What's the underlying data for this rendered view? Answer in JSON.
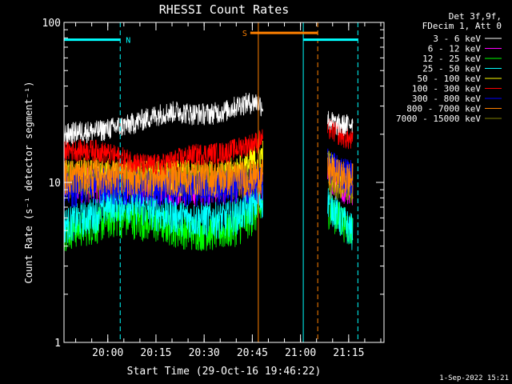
{
  "chart_data": {
    "type": "line",
    "title": "RHESSI Count Rates",
    "xlabel": "Start Time (29-Oct-16 19:46:22)",
    "ylabel": "Count Rate (s⁻¹ detector segment⁻¹)",
    "yscale": "log",
    "ylim": [
      1,
      100
    ],
    "xlim": [
      "19:46:22",
      "21:26:00"
    ],
    "y_tick_labels": [
      "1",
      "10",
      "100"
    ],
    "x_tick_labels": [
      "20:00",
      "20:15",
      "20:30",
      "20:45",
      "21:00",
      "21:15"
    ],
    "legend_header": [
      "Det 3f,9f,",
      "FDecim 1, Att 0"
    ],
    "series": [
      {
        "name": "3 - 6 keV",
        "color": "#ffffff",
        "values": [
          [
            0,
            20
          ],
          [
            5,
            21
          ],
          [
            10,
            21
          ],
          [
            15,
            22
          ],
          [
            20,
            23
          ],
          [
            25,
            25
          ],
          [
            30,
            27
          ],
          [
            35,
            28
          ],
          [
            40,
            27
          ],
          [
            45,
            27
          ],
          [
            50,
            28
          ],
          [
            55,
            31
          ],
          [
            60,
            32
          ],
          [
            62,
            30
          ],
          [
            82,
            25
          ],
          [
            85,
            23
          ],
          [
            88,
            23
          ],
          [
            90,
            24
          ]
        ]
      },
      {
        "name": "6 - 12 keV",
        "color": "#ff00ff",
        "values": [
          [
            0,
            10
          ],
          [
            10,
            10
          ],
          [
            20,
            9.5
          ],
          [
            30,
            9.5
          ],
          [
            40,
            9.5
          ],
          [
            50,
            9.7
          ],
          [
            60,
            10
          ],
          [
            62,
            10
          ],
          [
            82,
            11
          ],
          [
            86,
            10
          ],
          [
            90,
            9.5
          ]
        ]
      },
      {
        "name": "12 - 25 keV",
        "color": "#00ff00",
        "values": [
          [
            0,
            5
          ],
          [
            10,
            5.5
          ],
          [
            15,
            6
          ],
          [
            20,
            6
          ],
          [
            30,
            5.5
          ],
          [
            40,
            5
          ],
          [
            50,
            5
          ],
          [
            55,
            5.5
          ],
          [
            60,
            6.5
          ],
          [
            62,
            7
          ],
          [
            82,
            7
          ],
          [
            86,
            6
          ],
          [
            90,
            5
          ]
        ]
      },
      {
        "name": "25 - 50 keV",
        "color": "#00ffff",
        "values": [
          [
            0,
            5.5
          ],
          [
            10,
            6.5
          ],
          [
            15,
            7.5
          ],
          [
            20,
            7.5
          ],
          [
            30,
            6.5
          ],
          [
            40,
            6
          ],
          [
            50,
            6
          ],
          [
            55,
            6.5
          ],
          [
            60,
            7.5
          ],
          [
            62,
            8
          ],
          [
            82,
            8
          ],
          [
            86,
            6
          ],
          [
            90,
            5
          ]
        ]
      },
      {
        "name": "50 - 100 keV",
        "color": "#ffff00",
        "values": [
          [
            0,
            11
          ],
          [
            10,
            11
          ],
          [
            20,
            11
          ],
          [
            30,
            11
          ],
          [
            40,
            11
          ],
          [
            50,
            11
          ],
          [
            55,
            12
          ],
          [
            60,
            14
          ],
          [
            62,
            15
          ],
          [
            82,
            13
          ],
          [
            86,
            11
          ],
          [
            90,
            10
          ]
        ]
      },
      {
        "name": "100 - 300 keV",
        "color": "#ff0000",
        "values": [
          [
            0,
            16
          ],
          [
            10,
            16
          ],
          [
            20,
            14
          ],
          [
            25,
            13
          ],
          [
            30,
            13
          ],
          [
            35,
            14
          ],
          [
            40,
            15
          ],
          [
            50,
            15.5
          ],
          [
            60,
            18
          ],
          [
            62,
            19
          ],
          [
            82,
            22
          ],
          [
            86,
            20
          ],
          [
            90,
            18
          ]
        ]
      },
      {
        "name": "300 - 800 keV",
        "color": "#0000ff",
        "values": [
          [
            0,
            9
          ],
          [
            10,
            10
          ],
          [
            20,
            9.5
          ],
          [
            30,
            9.5
          ],
          [
            40,
            9.5
          ],
          [
            50,
            9.5
          ],
          [
            60,
            10
          ],
          [
            62,
            10
          ],
          [
            82,
            13
          ],
          [
            86,
            12
          ],
          [
            90,
            11
          ]
        ]
      },
      {
        "name": "800 - 7000 keV",
        "color": "#ff8000",
        "values": [
          [
            0,
            11
          ],
          [
            10,
            11.5
          ],
          [
            20,
            11
          ],
          [
            30,
            11
          ],
          [
            40,
            11
          ],
          [
            50,
            11
          ],
          [
            60,
            11
          ],
          [
            62,
            11
          ],
          [
            82,
            12
          ],
          [
            86,
            11
          ],
          [
            90,
            10.5
          ]
        ]
      },
      {
        "name": "7000 - 15000 keV",
        "color": "#808000",
        "values": [
          [
            0,
            10.5
          ],
          [
            10,
            10.5
          ],
          [
            20,
            10.5
          ],
          [
            30,
            10.5
          ],
          [
            40,
            10.5
          ],
          [
            50,
            10.5
          ],
          [
            60,
            10.5
          ],
          [
            62,
            10.5
          ],
          [
            82,
            10.5
          ],
          [
            86,
            10
          ],
          [
            90,
            10
          ]
        ]
      }
    ],
    "annotations": [
      {
        "label": "N",
        "color": "#00ffff",
        "x_start_min": 0,
        "x_end_min": 17.5,
        "y": 78
      },
      {
        "label": "S",
        "color": "#ff8000",
        "x_start_min": 58,
        "x_end_min": 79,
        "y": 86
      },
      {
        "label": "",
        "color": "#00ffff",
        "x_start_min": 74.5,
        "x_end_min": 91.5,
        "y": 78
      }
    ],
    "vertical_lines": [
      {
        "x_min": 0,
        "color": "#00ffff",
        "style": "solid"
      },
      {
        "x_min": 17.5,
        "color": "#00ffff",
        "style": "dashed"
      },
      {
        "x_min": 60.5,
        "color": "#ff8000",
        "style": "solid"
      },
      {
        "x_min": 74.5,
        "color": "#00ffff",
        "style": "solid"
      },
      {
        "x_min": 79,
        "color": "#ff8000",
        "style": "dashed"
      },
      {
        "x_min": 91.5,
        "color": "#00ffff",
        "style": "dashed"
      }
    ],
    "data_gap_min": [
      62,
      82
    ],
    "x_unit": "minutes since start",
    "x_tick_min": [
      13.6333,
      28.6333,
      43.6333,
      58.6333,
      73.6333,
      88.6333
    ],
    "grid": false,
    "legend_position": "top-right"
  },
  "footer": {
    "timestamp": "1-Sep-2022 15:21"
  }
}
